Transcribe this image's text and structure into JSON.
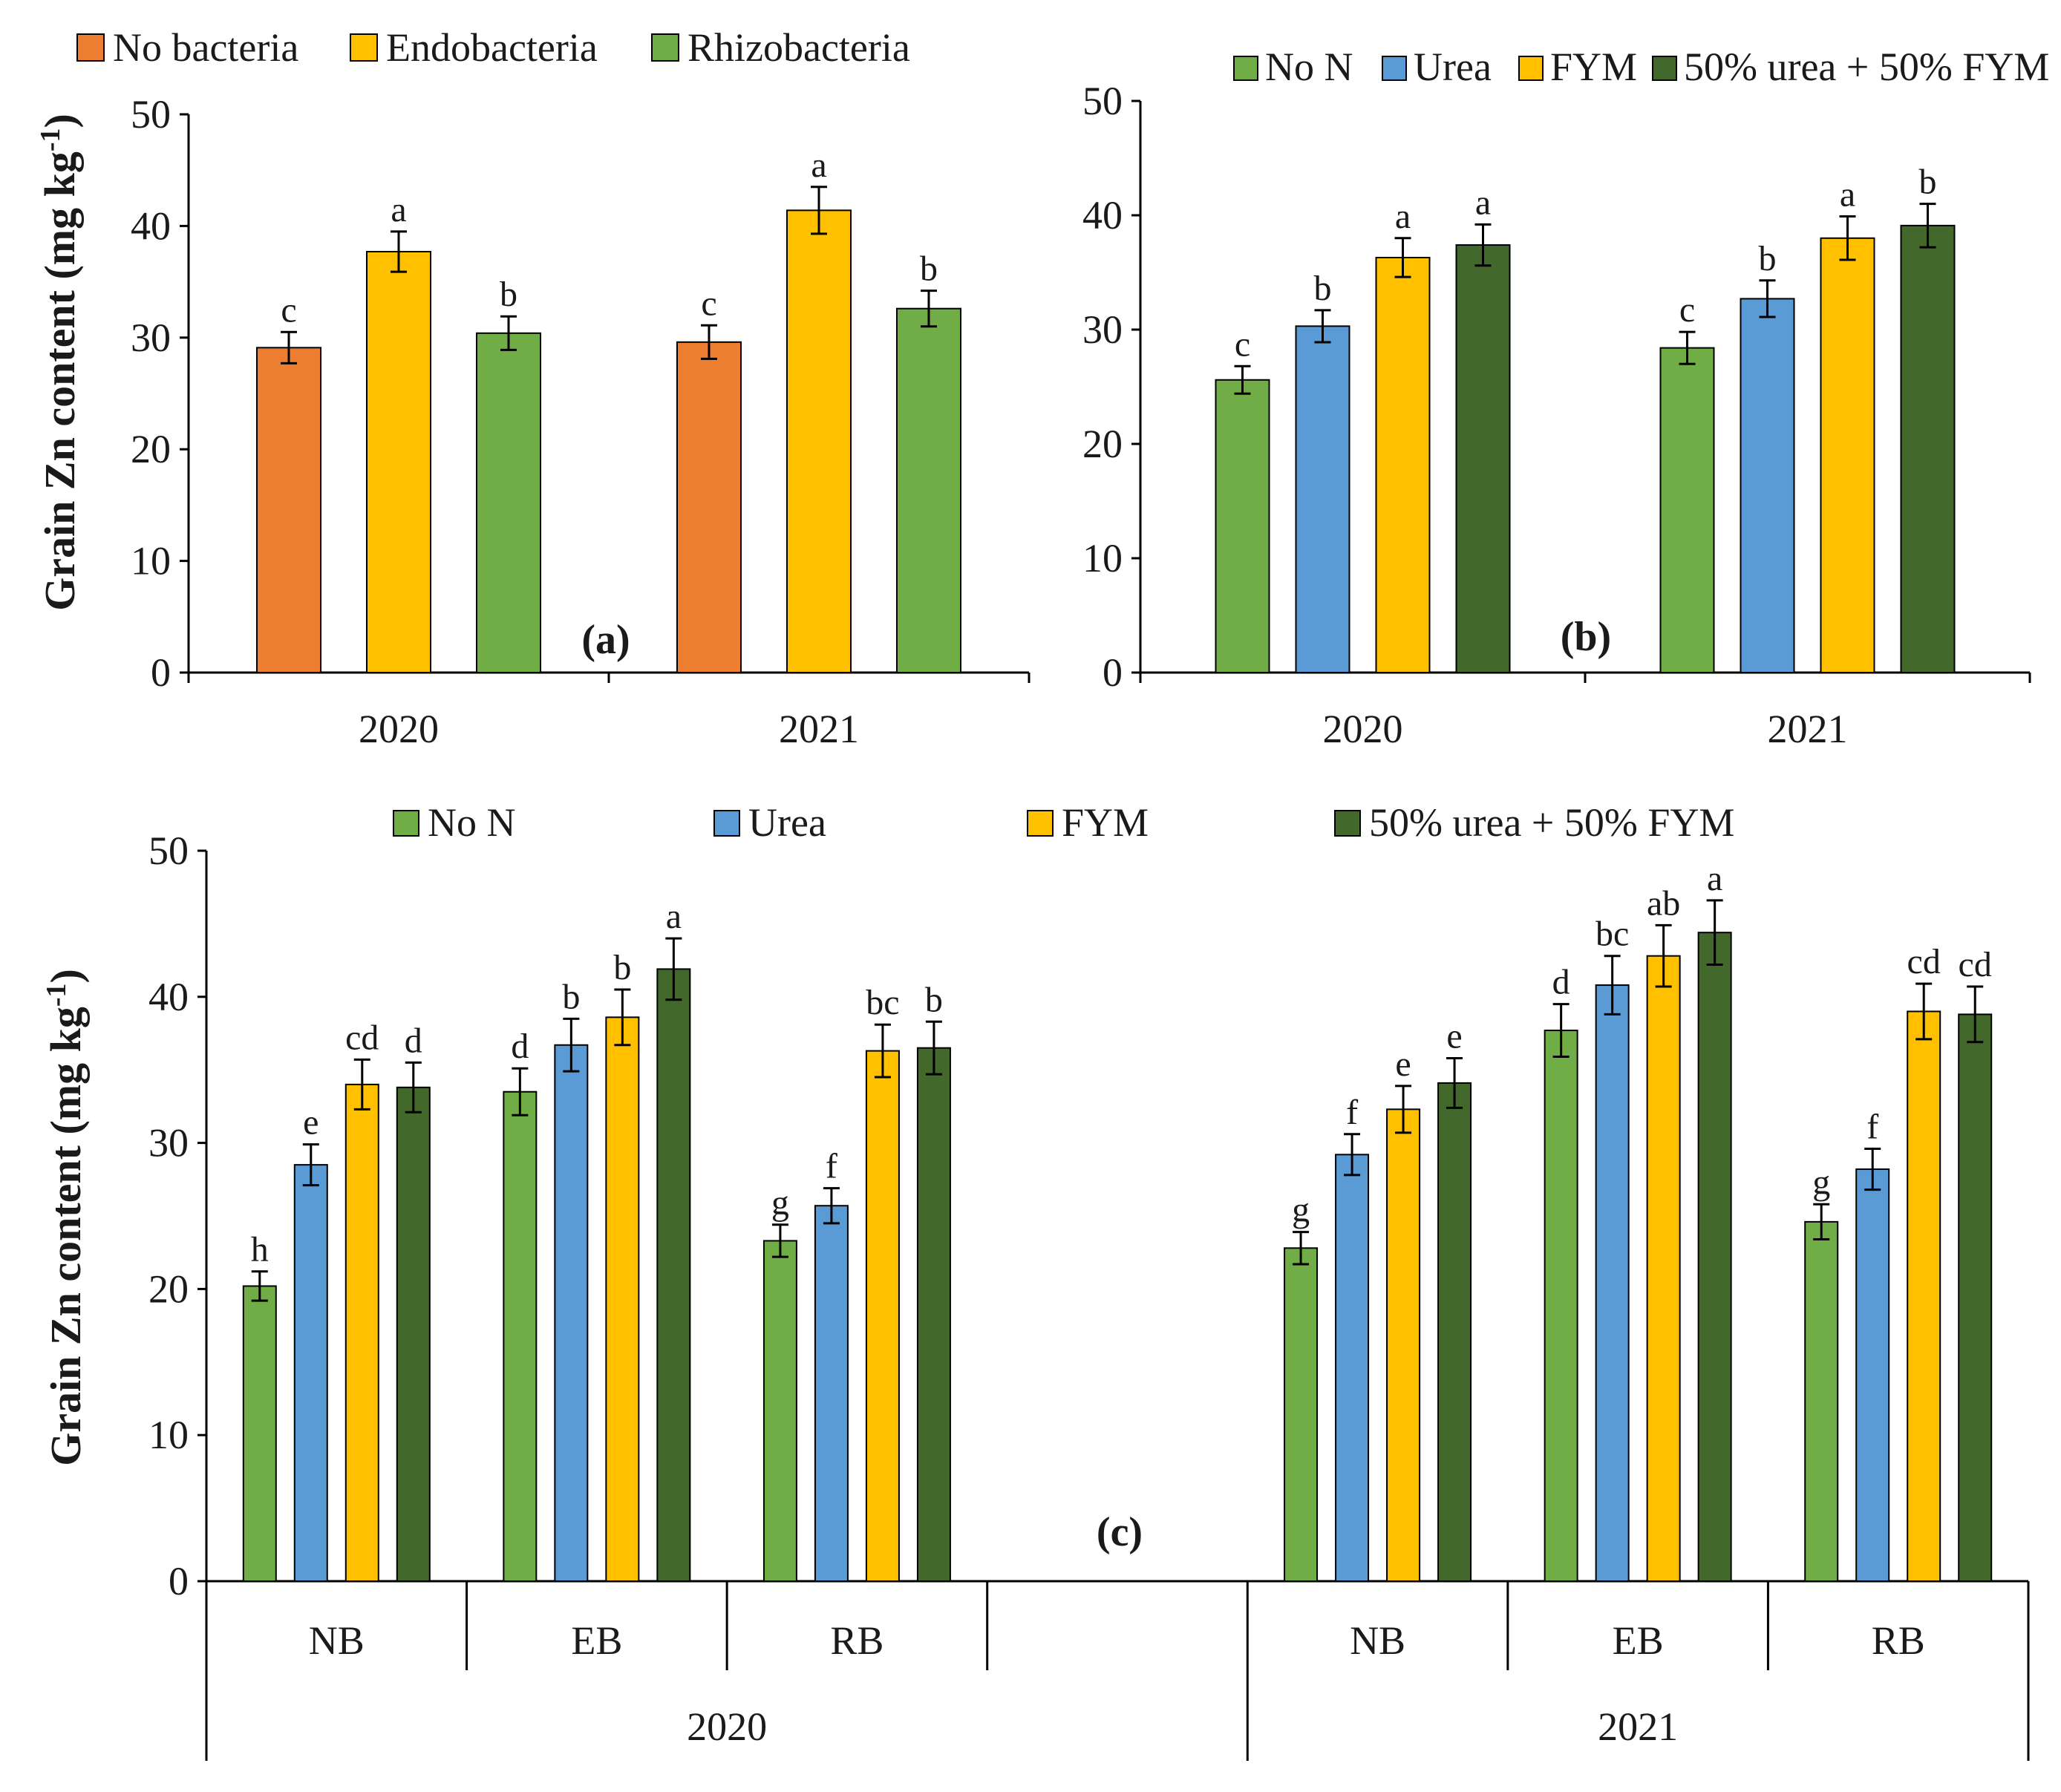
{
  "y_axis_label": "Grain Zn content (mg kg",
  "y_axis_label_sup": "-1",
  "y_axis_label_close": ")",
  "colors": {
    "no_bacteria": "#ED7D31",
    "endobacteria": "#FFC000",
    "rhizobacteria": "#70AD47",
    "no_n": "#70AD47",
    "urea": "#5B9BD5",
    "fym": "#FFC000",
    "urea_fym": "#43682B"
  },
  "chart_data": [
    {
      "id": "a",
      "type": "bar",
      "panel_label": "(a)",
      "title": "",
      "xlabel": "",
      "ylabel": "Grain Zn content (mg kg-1)",
      "ylim": [
        0,
        50
      ],
      "yticks": [
        0,
        10,
        20,
        30,
        40,
        50
      ],
      "categories": [
        "2020",
        "2021"
      ],
      "series": [
        {
          "name": "No bacteria",
          "color_key": "no_bacteria",
          "values": [
            29.1,
            29.6
          ],
          "errors": [
            1.4,
            1.5
          ],
          "letters": [
            "c",
            "c"
          ]
        },
        {
          "name": "Endobacteria",
          "color_key": "endobacteria",
          "values": [
            37.7,
            41.4
          ],
          "errors": [
            1.8,
            2.1
          ],
          "letters": [
            "a",
            "a"
          ]
        },
        {
          "name": "Rhizobacteria",
          "color_key": "rhizobacteria",
          "values": [
            30.4,
            32.6
          ],
          "errors": [
            1.5,
            1.6
          ],
          "letters": [
            "b",
            "b"
          ]
        }
      ],
      "legend": "top-left"
    },
    {
      "id": "b",
      "type": "bar",
      "panel_label": "(b)",
      "title": "",
      "xlabel": "",
      "ylabel": "",
      "ylim": [
        0,
        50
      ],
      "yticks": [
        0,
        10,
        20,
        30,
        40,
        50
      ],
      "categories": [
        "2020",
        "2021"
      ],
      "series": [
        {
          "name": "No N",
          "color_key": "no_n",
          "values": [
            25.6,
            28.4
          ],
          "errors": [
            1.2,
            1.4
          ],
          "letters": [
            "c",
            "c"
          ]
        },
        {
          "name": "Urea",
          "color_key": "urea",
          "values": [
            30.3,
            32.7
          ],
          "errors": [
            1.4,
            1.6
          ],
          "letters": [
            "b",
            "b"
          ]
        },
        {
          "name": "FYM",
          "color_key": "fym",
          "values": [
            36.3,
            38.0
          ],
          "errors": [
            1.7,
            1.9
          ],
          "letters": [
            "a",
            "a"
          ]
        },
        {
          "name": "50% urea + 50% FYM",
          "color_key": "urea_fym",
          "values": [
            37.4,
            39.1
          ],
          "errors": [
            1.8,
            1.9
          ],
          "letters": [
            "a",
            "b"
          ]
        }
      ],
      "legend": "top-right"
    },
    {
      "id": "c",
      "type": "bar",
      "panel_label": "(c)",
      "title": "",
      "xlabel": "",
      "ylabel": "Grain Zn content (mg kg-1)",
      "ylim": [
        0,
        50
      ],
      "yticks": [
        0,
        10,
        20,
        30,
        40,
        50
      ],
      "years": [
        "2020",
        "2021"
      ],
      "groups": [
        "NB",
        "EB",
        "RB"
      ],
      "categories": [
        "NB",
        "EB",
        "RB",
        "",
        "NB",
        "EB",
        "RB"
      ],
      "series": [
        {
          "name": "No N",
          "color_key": "no_n",
          "values": [
            20.2,
            33.5,
            23.3,
            null,
            22.8,
            37.7,
            24.6
          ],
          "errors": [
            1.0,
            1.6,
            1.1,
            null,
            1.1,
            1.8,
            1.2
          ],
          "letters": [
            "h",
            "d",
            "g",
            "",
            "g",
            "d",
            "g"
          ]
        },
        {
          "name": "Urea",
          "color_key": "urea",
          "values": [
            28.5,
            36.7,
            25.7,
            null,
            29.2,
            40.8,
            28.2
          ],
          "errors": [
            1.4,
            1.8,
            1.2,
            null,
            1.4,
            2.0,
            1.4
          ],
          "letters": [
            "e",
            "b",
            "f",
            "",
            "f",
            "bc",
            "f"
          ]
        },
        {
          "name": "FYM",
          "color_key": "fym",
          "values": [
            34.0,
            38.6,
            36.3,
            null,
            32.3,
            42.8,
            39.0
          ],
          "errors": [
            1.7,
            1.9,
            1.8,
            null,
            1.6,
            2.1,
            1.9
          ],
          "letters": [
            "cd",
            "b",
            "bc",
            "",
            "e",
            "ab",
            "cd"
          ]
        },
        {
          "name": "50% urea + 50% FYM",
          "color_key": "urea_fym",
          "values": [
            33.8,
            41.9,
            36.5,
            null,
            34.1,
            44.4,
            38.8
          ],
          "errors": [
            1.7,
            2.1,
            1.8,
            null,
            1.7,
            2.2,
            1.9
          ],
          "letters": [
            "d",
            "a",
            "b",
            "",
            "e",
            "a",
            "cd"
          ]
        }
      ],
      "legend": "top"
    }
  ]
}
